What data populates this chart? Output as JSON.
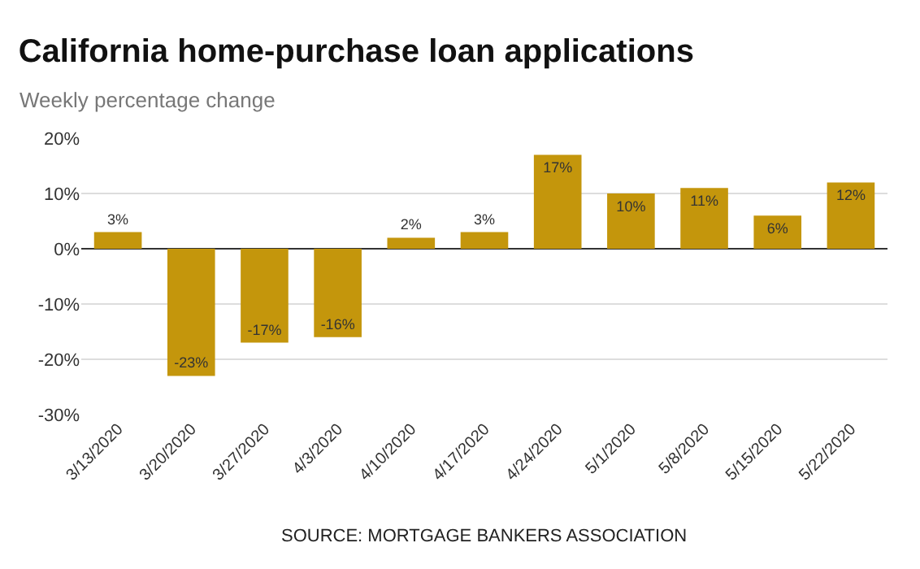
{
  "chart_data": {
    "type": "bar",
    "title": "California home-purchase loan applications",
    "subtitle": "Weekly percentage change",
    "categories": [
      "3/13/2020",
      "3/20/2020",
      "3/27/2020",
      "4/3/2020",
      "4/10/2020",
      "4/17/2020",
      "4/24/2020",
      "5/1/2020",
      "5/8/2020",
      "5/15/2020",
      "5/22/2020"
    ],
    "values": [
      3,
      -23,
      -17,
      -16,
      2,
      3,
      17,
      10,
      11,
      6,
      12
    ],
    "value_labels": [
      "3%",
      "-23%",
      "-17%",
      "-16%",
      "2%",
      "3%",
      "17%",
      "10%",
      "11%",
      "6%",
      "12%"
    ],
    "color": "#c4960c",
    "ylim": [
      -30,
      20
    ],
    "yticks": [
      {
        "value": -30,
        "label": "-30%"
      },
      {
        "value": -20,
        "label": "-20%"
      },
      {
        "value": -10,
        "label": "-10%"
      },
      {
        "value": 0,
        "label": "0%"
      },
      {
        "value": 10,
        "label": "10%"
      },
      {
        "value": 20,
        "label": "20%"
      }
    ],
    "grid": "y",
    "annotations": [
      "SOURCE: MORTGAGE BANKERS ASSOCIATION"
    ]
  }
}
